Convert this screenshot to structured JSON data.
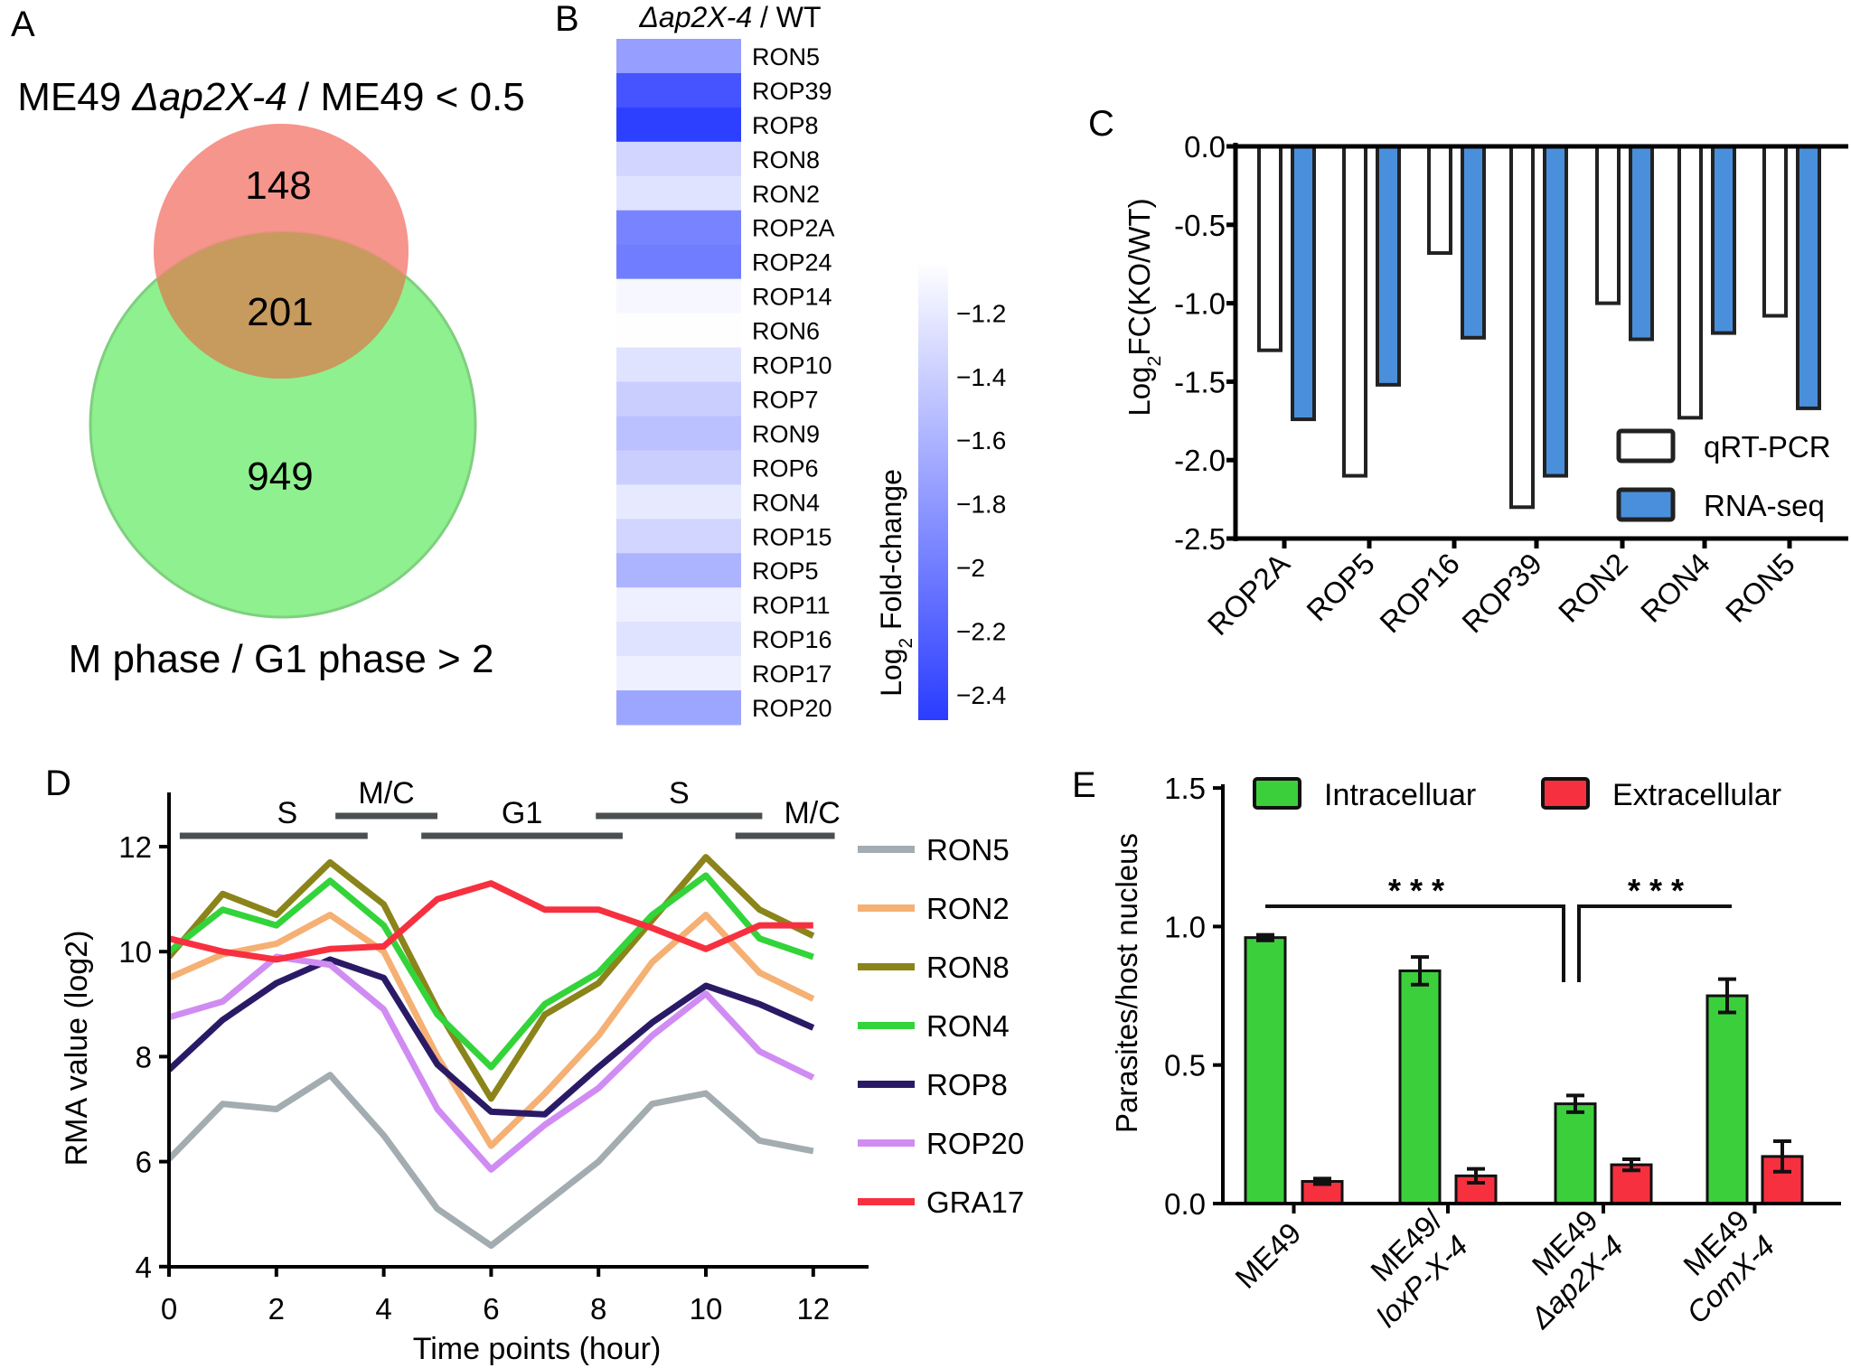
{
  "panel_labels": {
    "a": "A",
    "b": "B",
    "c": "C",
    "d": "D",
    "e": "E"
  },
  "chart_data": [
    {
      "panel": "A",
      "type": "venn",
      "top_label": [
        "ME49 ",
        "Δap2X-4",
        " / ME49 < 0.5"
      ],
      "bottom_label": "M phase / G1 phase > 2",
      "sets": [
        {
          "only": "148",
          "color": "#f4897f"
        },
        {
          "only": "949",
          "color": "#8ef08e"
        }
      ],
      "overlap": "201",
      "overlap_color": "#c79a5e"
    },
    {
      "panel": "B",
      "type": "heatmap",
      "title": [
        "Δap2X-4",
        " / WT"
      ],
      "rows": [
        "RON5",
        "ROP39",
        "ROP8",
        "RON8",
        "RON2",
        "ROP2A",
        "ROP24",
        "ROP14",
        "RON6",
        "ROP10",
        "ROP7",
        "RON9",
        "ROP6",
        "RON4",
        "ROP15",
        "ROP5",
        "ROP11",
        "ROP16",
        "ROP17",
        "ROP20"
      ],
      "values": [
        -1.75,
        -2.3,
        -2.45,
        -1.35,
        -1.25,
        -1.95,
        -2.0,
        -1.1,
        -1.05,
        -1.25,
        -1.4,
        -1.5,
        -1.4,
        -1.2,
        -1.35,
        -1.6,
        -1.15,
        -1.25,
        -1.15,
        -1.7
      ],
      "colorbar": {
        "label": [
          "Log",
          "2",
          " Fold-change"
        ],
        "range": [
          -1.04,
          -2.48
        ],
        "ticks": [
          "−1.2",
          "−1.4",
          "−1.6",
          "−1.8",
          "−2",
          "−2.2",
          "−2.4"
        ],
        "tick_values": [
          -1.2,
          -1.4,
          -1.6,
          -1.8,
          -2.0,
          -2.2,
          -2.4
        ],
        "color_low": "#ffffff",
        "color_high": "#2a3cff"
      }
    },
    {
      "panel": "C",
      "type": "bar",
      "ylabel": [
        "Log",
        "2",
        "FC(KO/WT)"
      ],
      "ylim": [
        -2.5,
        0
      ],
      "yticks": [
        "0.0",
        "-0.5",
        "-1.0",
        "-1.5",
        "-2.0",
        "-2.5"
      ],
      "ytick_values": [
        0,
        -0.5,
        -1.0,
        -1.5,
        -2.0,
        -2.5
      ],
      "categories": [
        "ROP2A",
        "ROP5",
        "ROP16",
        "ROP39",
        "RON2",
        "RON4",
        "RON5"
      ],
      "series": [
        {
          "name": "qRT-PCR",
          "color": "#ffffff",
          "values": [
            -1.3,
            -2.1,
            -0.68,
            -2.3,
            -1.0,
            -1.73,
            -1.08
          ]
        },
        {
          "name": "RNA-seq",
          "color": "#4a8fdb",
          "values": [
            -1.74,
            -1.52,
            -1.22,
            -2.1,
            -1.23,
            -1.19,
            -1.67
          ]
        }
      ],
      "legend": "bottom-right"
    },
    {
      "panel": "D",
      "type": "line",
      "xlabel": "Time points (hour)",
      "ylabel": "RMA value (log2)",
      "xlim": [
        0,
        12
      ],
      "ylim": [
        4,
        13
      ],
      "xticks": [
        "0",
        "2",
        "4",
        "6",
        "8",
        "10",
        "12"
      ],
      "xtick_values": [
        0,
        2,
        4,
        6,
        8,
        10,
        12
      ],
      "yticks": [
        "4",
        "6",
        "8",
        "10",
        "12"
      ],
      "ytick_values": [
        4,
        6,
        8,
        10,
        12
      ],
      "x": [
        0,
        1,
        2,
        3,
        4,
        5,
        6,
        7,
        8,
        9,
        10,
        11,
        12
      ],
      "phases": [
        {
          "label": "S",
          "from": 0.2,
          "to": 3.7,
          "level": "low"
        },
        {
          "label": "M/C",
          "from": 3.1,
          "to": 5.0,
          "level": "high"
        },
        {
          "label": "G1",
          "from": 4.7,
          "to": 8.45,
          "level": "low"
        },
        {
          "label": "S",
          "from": 7.95,
          "to": 11.05,
          "level": "high"
        },
        {
          "label": "M/C",
          "from": 10.55,
          "to": 12.4,
          "level": "low"
        }
      ],
      "series": [
        {
          "name": "RON5",
          "color": "#a3acb0",
          "values": [
            6.05,
            7.1,
            7.0,
            7.65,
            6.5,
            5.1,
            4.4,
            5.2,
            6.0,
            7.1,
            7.3,
            6.4,
            6.2
          ]
        },
        {
          "name": "RON2",
          "color": "#f5b074",
          "values": [
            9.5,
            9.95,
            10.15,
            10.7,
            10.0,
            8.0,
            6.3,
            7.3,
            8.4,
            9.8,
            10.7,
            9.6,
            9.1
          ]
        },
        {
          "name": "RON8",
          "color": "#8a841a",
          "values": [
            9.9,
            11.1,
            10.7,
            11.7,
            10.9,
            8.9,
            7.2,
            8.8,
            9.4,
            10.6,
            11.8,
            10.8,
            10.3
          ]
        },
        {
          "name": "RON4",
          "color": "#33d43a",
          "values": [
            10.0,
            10.8,
            10.5,
            11.35,
            10.5,
            8.8,
            7.8,
            9.0,
            9.6,
            10.7,
            11.45,
            10.25,
            9.9
          ]
        },
        {
          "name": "ROP8",
          "color": "#2a1a66",
          "values": [
            7.75,
            8.7,
            9.4,
            9.85,
            9.5,
            7.85,
            6.95,
            6.9,
            7.8,
            8.65,
            9.35,
            9.0,
            8.55
          ]
        },
        {
          "name": "ROP20",
          "color": "#d08cf2",
          "values": [
            8.75,
            9.05,
            9.9,
            9.75,
            8.9,
            7.0,
            5.85,
            6.7,
            7.4,
            8.4,
            9.2,
            8.1,
            7.6
          ]
        },
        {
          "name": "GRA17",
          "color": "#f7303f",
          "values": [
            10.25,
            10.0,
            9.85,
            10.05,
            10.1,
            11.0,
            11.3,
            10.8,
            10.8,
            10.45,
            10.05,
            10.5,
            10.5
          ]
        }
      ],
      "legend": "right"
    },
    {
      "panel": "E",
      "type": "bar",
      "ylabel": "Parasites/host nucleus",
      "ylim": [
        0,
        1.5
      ],
      "yticks": [
        "0.0",
        "0.5",
        "1.0",
        "1.5"
      ],
      "ytick_values": [
        0,
        0.5,
        1.0,
        1.5
      ],
      "categories": [
        [
          [
            "ME49",
            false
          ]
        ],
        [
          [
            "ME49/",
            false
          ],
          [
            "loxP-X-4",
            true
          ]
        ],
        [
          [
            "ME49",
            false
          ],
          [
            "Δap2X-4",
            true
          ]
        ],
        [
          [
            "ME49",
            false
          ],
          [
            "ComX-4",
            true
          ]
        ]
      ],
      "series": [
        {
          "name": "Intracelluar",
          "color": "#3ccf3c",
          "values": [
            0.96,
            0.84,
            0.36,
            0.75
          ],
          "errors": [
            0.01,
            0.05,
            0.03,
            0.06
          ]
        },
        {
          "name": "Extracellular",
          "color": "#f7303f",
          "values": [
            0.08,
            0.1,
            0.14,
            0.17
          ],
          "errors": [
            0.01,
            0.025,
            0.02,
            0.055
          ]
        }
      ],
      "significance": [
        {
          "between": [
            "ME49",
            "ME49 Δap2X-4"
          ],
          "label": "* * *"
        },
        {
          "between": [
            "ME49 Δap2X-4",
            "ME49 ComX-4"
          ],
          "label": "* * *"
        }
      ],
      "legend": "top"
    }
  ]
}
